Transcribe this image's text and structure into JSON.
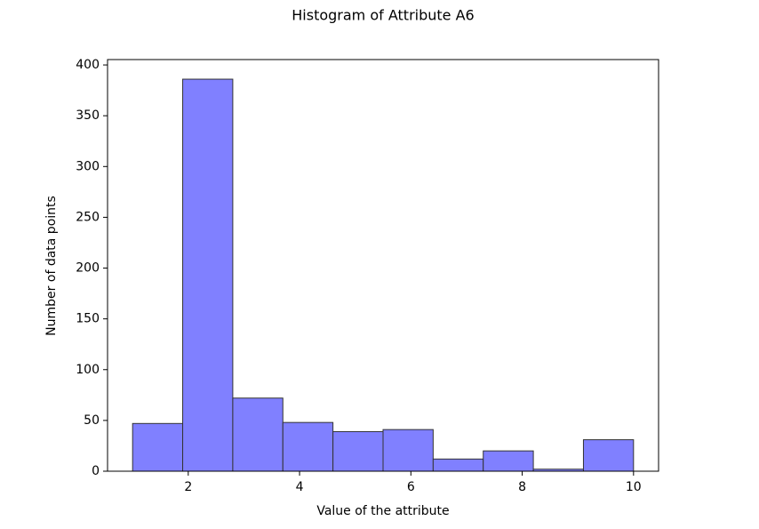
{
  "chart_data": {
    "type": "histogram",
    "title": "Histogram of Attribute A6",
    "xlabel": "Value of the attribute",
    "ylabel": "Number of data points",
    "bins": [
      1,
      1.9,
      2.8,
      3.7,
      4.6,
      5.5,
      6.4,
      7.3,
      8.2,
      9.1,
      10
    ],
    "values": [
      47,
      386,
      72,
      48,
      39,
      41,
      12,
      20,
      2,
      31
    ],
    "color": "#8080ff",
    "edgecolor": "#333333",
    "xlim": [
      0.55,
      10.45
    ],
    "xticks": [
      2,
      4,
      6,
      8,
      10
    ],
    "ylim": [
      0,
      405.3
    ],
    "yticks": [
      0,
      50,
      100,
      150,
      200,
      250,
      300,
      350,
      400
    ]
  }
}
